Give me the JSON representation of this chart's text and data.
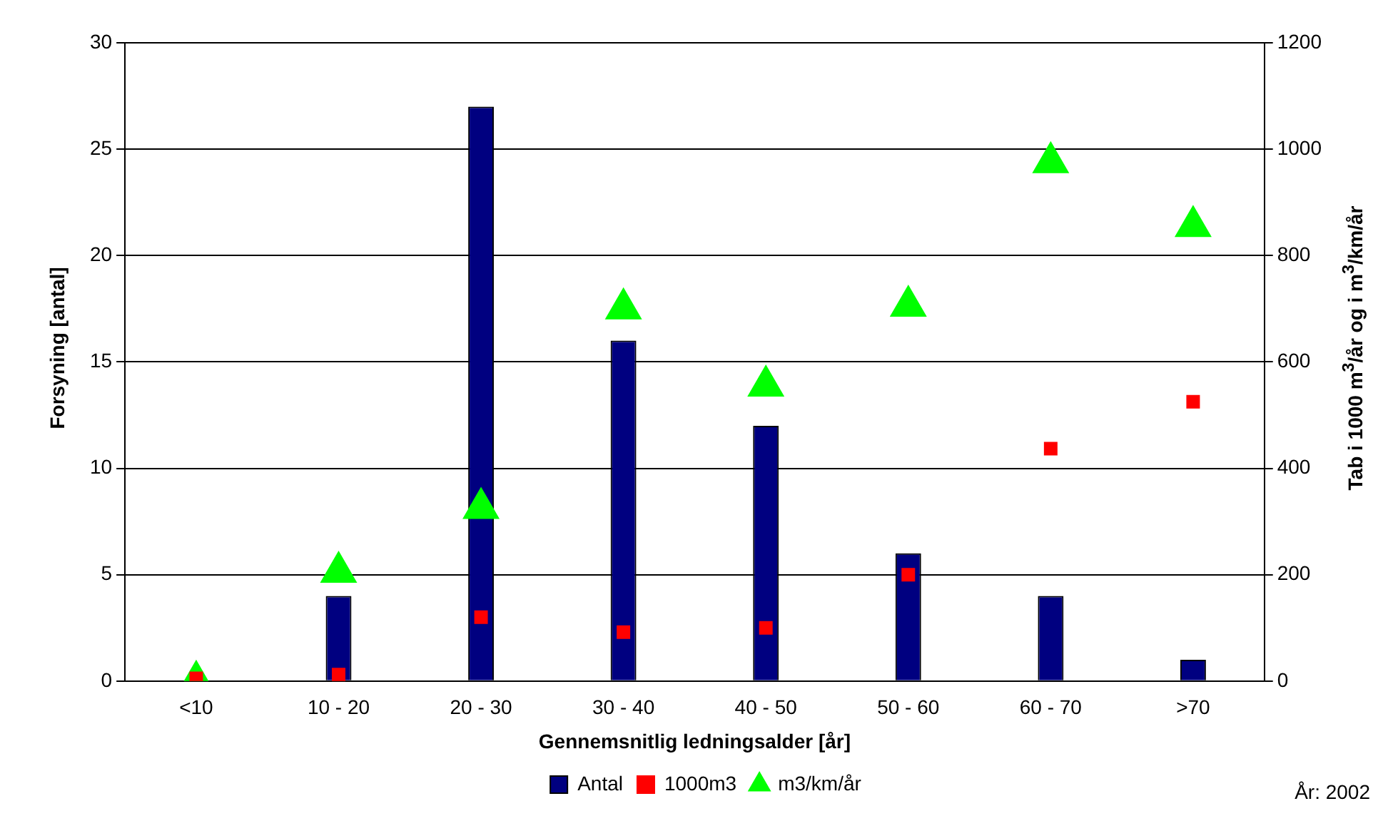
{
  "chart_data": {
    "type": "bar",
    "xlabel": "Gennemsnitlig ledningsalder [år]",
    "ylabel": "Forsyning [antal]",
    "y2label": "Tab i 1000 m$^{3}$/år og i m$^{3}$/km/år",
    "categories": [
      "<10",
      "10 - 20",
      "20 - 30",
      "30 - 40",
      "40 - 50",
      "50 - 60",
      "60 - 70",
      ">70"
    ],
    "series": [
      {
        "name": "Antal",
        "color": "#000080",
        "values": [
          0,
          4,
          27,
          16,
          12,
          6,
          4,
          1
        ]
      },
      {
        "name": "1000m3",
        "type": "scatter",
        "axis": "y2",
        "marker": "square",
        "color": "#ff0000",
        "values": [
          5,
          12,
          120,
          92,
          100,
          200,
          437,
          525
        ]
      },
      {
        "name": "m3/km/år",
        "type": "scatter",
        "axis": "y2",
        "marker": "triangle",
        "color": "#00ff00",
        "values": [
          0,
          205,
          325,
          700,
          555,
          705,
          975,
          855
        ]
      }
    ],
    "ylim": [
      0,
      30
    ],
    "yticks": [
      0,
      5,
      10,
      15,
      20,
      25,
      30
    ],
    "y2lim": [
      0,
      1200
    ],
    "y2ticks": [
      0,
      200,
      400,
      600,
      800,
      1000,
      1200
    ],
    "grid": "y",
    "legend": "bottom",
    "annotations": [
      "År: 2002"
    ]
  }
}
